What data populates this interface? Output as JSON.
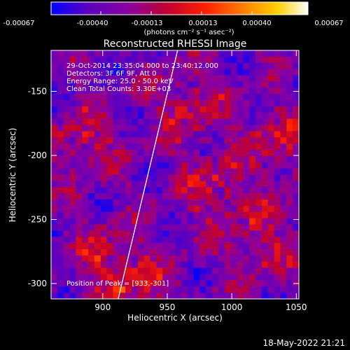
{
  "colorbar": {
    "tick_labels": [
      "-0.00067",
      "-0.00040",
      "-0.00013",
      "0.00013",
      "0.00040",
      "0.00067"
    ],
    "unit_label": "(photons cm⁻² s⁻¹ asec⁻²)",
    "colormap": [
      "#0000ff",
      "#5a00c0",
      "#8a00a0",
      "#c00030",
      "#ff2000",
      "#ff8000",
      "#ffd000",
      "#ffffff"
    ]
  },
  "chart_data": {
    "type": "heatmap",
    "title": "Reconstructed RHESSI Image",
    "xlabel": "Heliocentric X (arcsec)",
    "ylabel": "Heliocentric Y (arcsec)",
    "xlim": [
      860,
      1052
    ],
    "ylim": [
      -312,
      -118
    ],
    "x_ticks": [
      900,
      950,
      1000,
      1050
    ],
    "y_ticks": [
      -150,
      -200,
      -250,
      -300
    ],
    "value_range": [
      -0.00067,
      0.00067
    ],
    "annotations": [
      "29-Oct-2014 23:35:04.000  to  23:40:12.000",
      "Detectors: 3F 6F 9F, Att 0",
      "Energy Range: 25.0 - 50.0 keV",
      "Clean     Total Counts: 3.30E+03"
    ],
    "peak_label": "Position of Peak = [933,-301]",
    "limb_line": {
      "x": [
        912,
        958
      ],
      "y": [
        -312,
        -118
      ]
    }
  },
  "footer": {
    "timestamp": "18-May-2022 21:21"
  },
  "colors": {
    "background": "#000000",
    "text": "#ffffff"
  }
}
